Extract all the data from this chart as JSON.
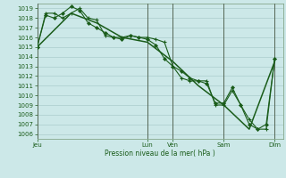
{
  "bg_color": "#cce8e8",
  "grid_color": "#aacccc",
  "line_color": "#1a5c1a",
  "line_width": 0.8,
  "marker_size": 2.5,
  "ylabel_text": "Pression niveau de la mer( hPa )",
  "ylim": [
    1005.5,
    1019.5
  ],
  "yticks": [
    1006,
    1007,
    1008,
    1009,
    1010,
    1011,
    1012,
    1013,
    1014,
    1015,
    1016,
    1017,
    1018,
    1019
  ],
  "xtick_labels": [
    "Jeu",
    "Lun",
    "Ven",
    "Sam",
    "Dim"
  ],
  "xtick_positions": [
    0,
    13,
    16,
    22,
    28
  ],
  "xlim": [
    0,
    29
  ],
  "vlines": [
    0,
    13,
    16,
    22,
    28
  ],
  "series1_x": [
    0,
    1,
    2,
    3,
    4,
    5,
    6,
    7,
    8,
    9,
    10,
    11,
    12,
    13,
    14,
    15,
    16,
    17,
    18,
    19,
    20,
    21,
    22,
    23,
    24,
    25,
    26,
    27,
    28
  ],
  "series1_y": [
    1015.0,
    1018.5,
    1018.5,
    1018.0,
    1018.5,
    1019.0,
    1018.0,
    1017.8,
    1016.2,
    1016.0,
    1016.0,
    1016.2,
    1016.0,
    1016.0,
    1015.8,
    1015.5,
    1013.0,
    1011.8,
    1011.5,
    1011.5,
    1011.5,
    1009.0,
    1009.0,
    1010.5,
    1009.0,
    1007.5,
    1006.5,
    1006.5,
    1013.8
  ],
  "series2_x": [
    0,
    1,
    2,
    3,
    4,
    5,
    6,
    7,
    8,
    9,
    10,
    11,
    12,
    13,
    14,
    15,
    16,
    17,
    18,
    19,
    20,
    21,
    22,
    23,
    24,
    25,
    26,
    27,
    28
  ],
  "series2_y": [
    1015.0,
    1018.3,
    1018.0,
    1018.5,
    1019.2,
    1018.8,
    1017.5,
    1017.0,
    1016.5,
    1016.0,
    1015.8,
    1016.2,
    1016.0,
    1015.8,
    1015.2,
    1013.8,
    1013.0,
    1012.5,
    1011.8,
    1011.5,
    1011.2,
    1009.2,
    1009.2,
    1010.8,
    1009.0,
    1007.0,
    1006.5,
    1007.0,
    1013.8
  ],
  "series3_x": [
    0,
    4,
    7,
    10,
    13,
    16,
    19,
    22,
    25,
    28
  ],
  "series3_y": [
    1015.0,
    1018.5,
    1017.5,
    1016.0,
    1015.5,
    1013.5,
    1011.0,
    1009.0,
    1006.5,
    1013.5
  ]
}
